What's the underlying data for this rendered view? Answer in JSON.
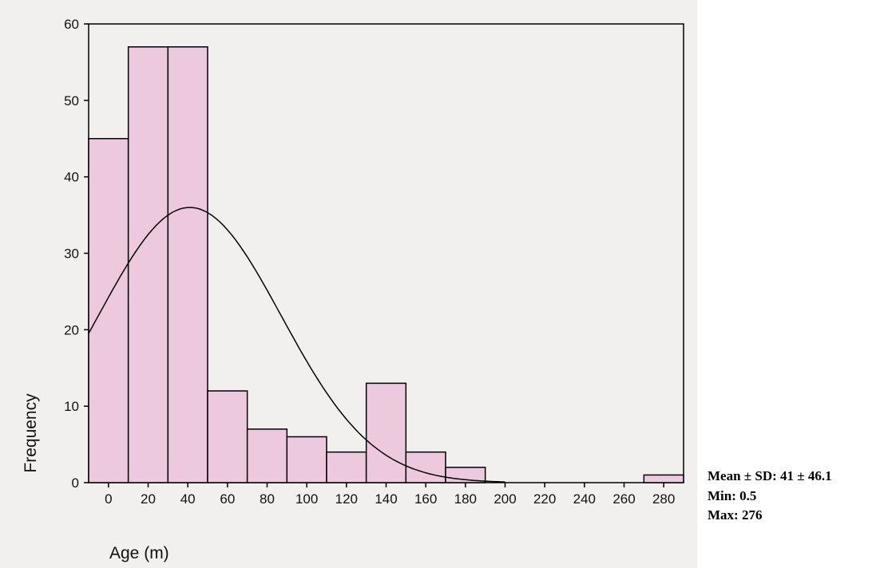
{
  "chart_data": {
    "type": "bar",
    "xlabel": "Age (m)",
    "ylabel": "Frequency",
    "bin_width": 20,
    "bins": [
      {
        "start": -10,
        "end": 10,
        "count": 45
      },
      {
        "start": 10,
        "end": 30,
        "count": 57
      },
      {
        "start": 30,
        "end": 50,
        "count": 57
      },
      {
        "start": 50,
        "end": 70,
        "count": 12
      },
      {
        "start": 70,
        "end": 90,
        "count": 7
      },
      {
        "start": 90,
        "end": 110,
        "count": 6
      },
      {
        "start": 110,
        "end": 130,
        "count": 4
      },
      {
        "start": 130,
        "end": 150,
        "count": 13
      },
      {
        "start": 150,
        "end": 170,
        "count": 4
      },
      {
        "start": 170,
        "end": 190,
        "count": 2
      },
      {
        "start": 190,
        "end": 210,
        "count": 0
      },
      {
        "start": 210,
        "end": 230,
        "count": 0
      },
      {
        "start": 230,
        "end": 250,
        "count": 0
      },
      {
        "start": 250,
        "end": 270,
        "count": 0
      },
      {
        "start": 270,
        "end": 290,
        "count": 1
      }
    ],
    "x_ticks": [
      0,
      20,
      40,
      60,
      80,
      100,
      120,
      140,
      160,
      180,
      200,
      220,
      240,
      260,
      280
    ],
    "y_ticks": [
      0,
      10,
      20,
      30,
      40,
      50,
      60
    ],
    "xlim": [
      -10,
      290
    ],
    "ylim": [
      0,
      60
    ],
    "normal_curve": {
      "mean": 41,
      "sd": 46.1
    },
    "bar_fill": "#ecc9dd",
    "bar_stroke": "#000000",
    "curve_color": "#000000"
  },
  "stats": {
    "mean_sd": "Mean ± SD: 41 ± 46.1",
    "min": "Min: 0.5",
    "max": "Max: 276"
  }
}
